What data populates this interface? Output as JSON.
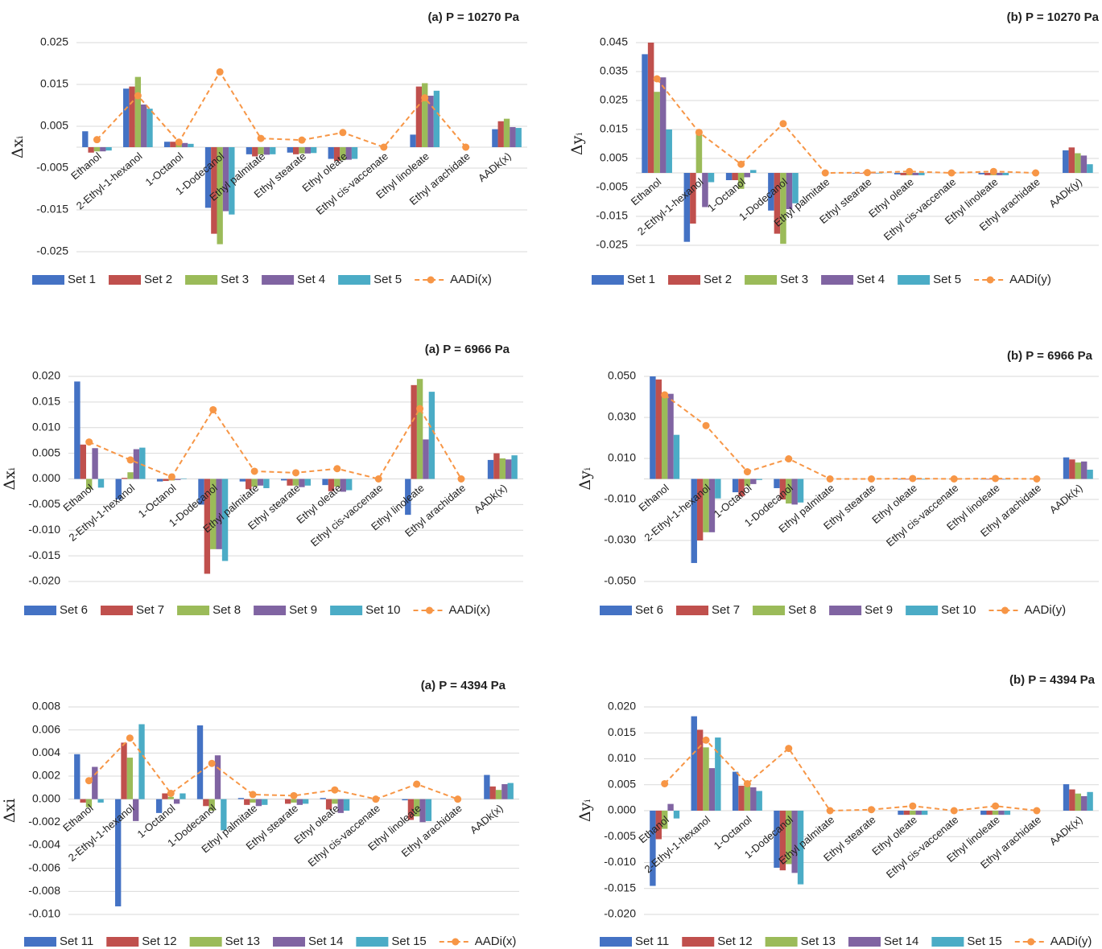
{
  "chart_data": [
    {
      "type": "bar",
      "title": "(a) P = 10270 Pa",
      "ylabel": "Δxᵢ",
      "legend": "bottom",
      "grid": true,
      "categories": [
        "Ethanol",
        "2-Ethyl-1-hexanol",
        "1-Octanol",
        "1-Dodecanol",
        "Ethyl palmitate",
        "Ethyl stearate",
        "Ethyl oleate",
        "Ethyl cis-vaccenate",
        "Ethyl linoleate",
        "Ethyl arachidate",
        "AADk(x)"
      ],
      "ylim": [
        -0.025,
        0.025
      ],
      "yticks": [
        -0.025,
        -0.015,
        -0.005,
        0.005,
        0.015,
        0.025
      ],
      "series": [
        {
          "name": "Set 1",
          "color": "#4472c4",
          "values": [
            0.0038,
            0.014,
            0.0013,
            -0.0145,
            -0.0017,
            -0.0013,
            -0.0028,
            0,
            0.003,
            0,
            0.0043
          ]
        },
        {
          "name": "Set 2",
          "color": "#c0504d",
          "values": [
            -0.0013,
            0.0145,
            0.0013,
            -0.0207,
            -0.0022,
            -0.0017,
            -0.0033,
            0,
            0.0145,
            0,
            0.0062
          ]
        },
        {
          "name": "Set 3",
          "color": "#9bbb59",
          "values": [
            -0.001,
            0.0168,
            0.0015,
            -0.0232,
            -0.0017,
            -0.0015,
            -0.0031,
            0,
            0.0153,
            0,
            0.0068
          ]
        },
        {
          "name": "Set 4",
          "color": "#8064a2",
          "values": [
            -0.001,
            0.0102,
            0.001,
            -0.0153,
            -0.0018,
            -0.0015,
            -0.003,
            0,
            0.0123,
            0,
            0.0048
          ]
        },
        {
          "name": "Set 5",
          "color": "#4bacc6",
          "values": [
            -0.0008,
            0.0092,
            0.0008,
            -0.0161,
            -0.0017,
            -0.0014,
            -0.0028,
            0,
            0.0135,
            0,
            0.0046
          ]
        },
        {
          "name": "AADi(x)",
          "color": "#f79646",
          "type": "line",
          "dashed": true,
          "values": [
            0.0018,
            0.0123,
            0.0012,
            0.018,
            0.0021,
            0.0017,
            0.0035,
            0,
            0.0118,
            0,
            null
          ]
        }
      ]
    },
    {
      "type": "bar",
      "title": "(b) P = 10270 Pa",
      "ylabel": "Δyᵢ",
      "legend": "bottom",
      "grid": true,
      "categories": [
        "Ethanol",
        "2-Ethyl-1-hexanol",
        "1-Octanol",
        "1-Dodecanol",
        "Ethyl palmitate",
        "Ethyl stearate",
        "Ethyl oleate",
        "Ethyl cis-vaccenate",
        "Ethyl linoleate",
        "Ethyl arachidate",
        "AADk(y)"
      ],
      "ylim": [
        -0.025,
        0.045
      ],
      "yticks": [
        -0.025,
        -0.015,
        -0.005,
        0.005,
        0.015,
        0.025,
        0.035,
        0.045
      ],
      "series": [
        {
          "name": "Set 1",
          "color": "#4472c4",
          "values": [
            0.041,
            -0.0238,
            -0.0025,
            -0.013,
            0,
            -0.0002,
            -0.0005,
            0,
            -0.0005,
            0,
            0.0078
          ]
        },
        {
          "name": "Set 2",
          "color": "#c0504d",
          "values": [
            0.045,
            -0.0175,
            -0.0025,
            -0.021,
            0,
            -0.0002,
            -0.0008,
            0,
            -0.0008,
            0,
            0.0088
          ]
        },
        {
          "name": "Set 3",
          "color": "#9bbb59",
          "values": [
            0.028,
            0.014,
            -0.0055,
            -0.0245,
            0,
            -0.0002,
            -0.0008,
            0,
            -0.0008,
            0,
            0.0068
          ]
        },
        {
          "name": "Set 4",
          "color": "#8064a2",
          "values": [
            0.033,
            -0.0118,
            -0.0015,
            -0.0125,
            0,
            -0.0002,
            -0.0008,
            0,
            -0.0008,
            0,
            0.006
          ]
        },
        {
          "name": "Set 5",
          "color": "#4bacc6",
          "values": [
            0.015,
            -0.0032,
            0.001,
            -0.0105,
            0,
            -0.0002,
            -0.0008,
            0,
            -0.0008,
            0,
            0.003
          ]
        },
        {
          "name": "AADi(y)",
          "color": "#f79646",
          "type": "line",
          "dashed": true,
          "values": [
            0.0325,
            0.014,
            0.003,
            0.017,
            0,
            0.0001,
            0.0005,
            0,
            0.0005,
            0,
            null
          ]
        }
      ]
    },
    {
      "type": "bar",
      "title": "(a) P = 6966 Pa",
      "ylabel": "Δxᵢ",
      "legend": "bottom",
      "grid": true,
      "categories": [
        "Ethanol",
        "2-Ethyl-1-hexanol",
        "1-Octanol",
        "1-Dodecanol",
        "Ethyl palmitate",
        "Ethyl stearate",
        "Ethyl oleate",
        "Ethyl cis-vaccenate",
        "Ethyl linoleate",
        "Ethyl arachidate",
        "AADk(x)"
      ],
      "ylim": [
        -0.02,
        0.02
      ],
      "yticks": [
        {
          "value": -0.02,
          "label": "-0.020"
        },
        -0.015,
        {
          "value": -0.01,
          "label": "-0.010"
        },
        -0.005,
        {
          "value": 0,
          "label": "0.000"
        },
        0.005,
        {
          "value": 0.01,
          "label": "0.010"
        },
        0.015,
        {
          "value": 0.02,
          "label": "0.020"
        }
      ],
      "series": [
        {
          "name": "Set 6",
          "color": "#4472c4",
          "values": [
            0.019,
            -0.004,
            -0.0005,
            -0.005,
            -0.0005,
            -0.0003,
            -0.0012,
            0,
            -0.007,
            0,
            0.0037
          ]
        },
        {
          "name": "Set 7",
          "color": "#c0504d",
          "values": [
            0.0067,
            0.0002,
            -0.0004,
            -0.0185,
            -0.002,
            -0.0013,
            -0.0024,
            0,
            0.0183,
            0,
            0.005
          ]
        },
        {
          "name": "Set 8",
          "color": "#9bbb59",
          "values": [
            -0.002,
            0.0013,
            -0.0003,
            -0.0137,
            -0.0015,
            -0.0013,
            -0.0015,
            0,
            0.0195,
            0,
            0.004
          ]
        },
        {
          "name": "Set 9",
          "color": "#8064a2",
          "values": [
            0.006,
            0.0058,
            -0.0002,
            -0.0137,
            -0.0013,
            -0.0016,
            -0.0025,
            0,
            0.0077,
            0,
            0.0038
          ]
        },
        {
          "name": "Set 10",
          "color": "#4bacc6",
          "values": [
            -0.0017,
            0.0061,
            0.0001,
            -0.016,
            -0.0018,
            -0.0013,
            -0.0022,
            0,
            0.017,
            0,
            0.0046
          ]
        },
        {
          "name": "AADi(x)",
          "color": "#f79646",
          "type": "line",
          "dashed": true,
          "values": [
            0.0072,
            0.0037,
            0.0004,
            0.0135,
            0.0015,
            0.0012,
            0.002,
            0,
            0.0137,
            0,
            null
          ]
        }
      ]
    },
    {
      "type": "bar",
      "title": "(b) P = 6966 Pa",
      "ylabel": "Δyᵢ",
      "legend": "bottom",
      "grid": true,
      "categories": [
        "Ethanol",
        "2-Ethyl-1-hexanol",
        "1-Octanol",
        "1-Dodecanol",
        "Ethyl palmitate",
        "Ethyl stearate",
        "Ethyl oleate",
        "Ethyl cis-vaccenate",
        "Ethyl linoleate",
        "Ethyl arachidate",
        "AADk(x)"
      ],
      "ylim": [
        -0.05,
        0.05
      ],
      "yticks": [
        {
          "value": -0.05,
          "label": "-0.050"
        },
        {
          "value": -0.03,
          "label": "-0.030"
        },
        {
          "value": -0.01,
          "label": "-0.010"
        },
        {
          "value": 0.01,
          "label": "0.010"
        },
        {
          "value": 0.03,
          "label": "0.030"
        },
        {
          "value": 0.05,
          "label": "0.050"
        }
      ],
      "series": [
        {
          "name": "Set 6",
          "color": "#4472c4",
          "values": [
            0.05,
            -0.041,
            -0.0065,
            -0.0045,
            0,
            0,
            -0.0003,
            0,
            -0.0003,
            0,
            0.0105
          ]
        },
        {
          "name": "Set 7",
          "color": "#c0504d",
          "values": [
            0.0485,
            -0.03,
            -0.0085,
            -0.01,
            0,
            0,
            -0.0003,
            0,
            -0.0003,
            0,
            0.0095
          ]
        },
        {
          "name": "Set 8",
          "color": "#9bbb59",
          "values": [
            0.041,
            -0.026,
            -0.0035,
            -0.012,
            0,
            0,
            -0.0003,
            0,
            -0.0003,
            0,
            0.008
          ]
        },
        {
          "name": "Set 9",
          "color": "#8064a2",
          "values": [
            0.0415,
            -0.026,
            -0.0025,
            -0.0125,
            0,
            0,
            -0.0003,
            0,
            -0.0003,
            0,
            0.0085
          ]
        },
        {
          "name": "Set 10",
          "color": "#4bacc6",
          "values": [
            0.0215,
            -0.0095,
            -0.0005,
            -0.0115,
            0,
            0,
            -0.0003,
            0,
            -0.0003,
            0,
            0.0045
          ]
        },
        {
          "name": "AADi(y)",
          "color": "#f79646",
          "type": "line",
          "dashed": true,
          "values": [
            0.041,
            0.026,
            0.0035,
            0.0098,
            0,
            0,
            0.0002,
            0,
            0.0002,
            0,
            null
          ]
        }
      ]
    },
    {
      "type": "bar",
      "title": "(a) P = 4394 Pa",
      "ylabel": "Δxi",
      "legend": "bottom",
      "grid": true,
      "categories": [
        "Ethanol",
        "2-Ethyl-1-hexanol",
        "1-Octanol",
        "1-Dodecanol",
        "Ethyl palmitate",
        "Ethyl stearate",
        "Ethyl oleate",
        "Ethyl cis-vaccenate",
        "Ethyl linoleate",
        "Ethyl arachidate",
        "AADk(x)"
      ],
      "ylim": [
        -0.01,
        0.008
      ],
      "yticks": [
        {
          "value": -0.01,
          "label": "-0.010"
        },
        -0.008,
        -0.006,
        -0.004,
        -0.002,
        {
          "value": 0,
          "label": "0.000"
        },
        0.002,
        0.004,
        0.006,
        0.008
      ],
      "series": [
        {
          "name": "Set 11",
          "color": "#4472c4",
          "values": [
            0.0039,
            -0.0093,
            -0.0012,
            0.0064,
            0.0001,
            0,
            0.0001,
            0,
            -0.0001,
            0,
            0.0021
          ]
        },
        {
          "name": "Set 12",
          "color": "#c0504d",
          "values": [
            -0.0003,
            0.0049,
            0.0005,
            -0.0006,
            -0.0005,
            -0.0004,
            -0.0009,
            0,
            -0.0018,
            0,
            0.0011
          ]
        },
        {
          "name": "Set 13",
          "color": "#9bbb59",
          "values": [
            -0.0007,
            0.0036,
            0.0002,
            -0.001,
            -0.0003,
            -0.0003,
            -0.0004,
            0,
            -0.0015,
            0,
            0.0008
          ]
        },
        {
          "name": "Set 14",
          "color": "#8064a2",
          "values": [
            0.0028,
            -0.0019,
            -0.0004,
            0.0038,
            -0.0006,
            -0.0005,
            -0.0012,
            0,
            -0.002,
            0,
            0.0013
          ]
        },
        {
          "name": "Set 15",
          "color": "#4bacc6",
          "values": [
            -0.0003,
            0.0065,
            0.0005,
            -0.0027,
            -0.0005,
            -0.0004,
            -0.001,
            0,
            -0.0019,
            0,
            0.0014
          ]
        },
        {
          "name": "AADi(x)",
          "color": "#f79646",
          "type": "line",
          "dashed": true,
          "values": [
            0.0016,
            0.0053,
            0.0005,
            0.0031,
            0.0004,
            0.0003,
            0.0008,
            0,
            0.0013,
            0,
            null
          ]
        }
      ]
    },
    {
      "type": "bar",
      "title": "(b) P = 4394 Pa",
      "ylabel": "Δyᵢ",
      "legend": "bottom",
      "grid": true,
      "categories": [
        "Ethanol",
        "2-Ethyl-1-hexanol",
        "1-Octanol",
        "1-Dodecanol",
        "Ethyl palmitate",
        "Ethyl stearate",
        "Ethyl oleate",
        "Ethyl cis-vaccenate",
        "Ethyl linoleate",
        "Ethyl arachidate",
        "AADk(x)"
      ],
      "ylim": [
        -0.02,
        0.02
      ],
      "yticks": [
        {
          "value": -0.02,
          "label": "-0.020"
        },
        -0.015,
        {
          "value": -0.01,
          "label": "-0.010"
        },
        -0.005,
        {
          "value": 0,
          "label": "0.000"
        },
        0.005,
        {
          "value": 0.01,
          "label": "0.010"
        },
        0.015,
        {
          "value": 0.02,
          "label": "0.020"
        }
      ],
      "series": [
        {
          "name": "Set 11",
          "color": "#4472c4",
          "values": [
            -0.0145,
            0.0182,
            0.0075,
            -0.011,
            0,
            0,
            -0.0008,
            0,
            -0.0008,
            0,
            0.0051
          ]
        },
        {
          "name": "Set 12",
          "color": "#c0504d",
          "values": [
            -0.0055,
            0.0156,
            0.0048,
            -0.0115,
            0,
            0,
            -0.0008,
            0,
            -0.0008,
            0,
            0.0041
          ]
        },
        {
          "name": "Set 13",
          "color": "#9bbb59",
          "values": [
            -0.0035,
            0.0122,
            0.0055,
            -0.0103,
            0,
            0,
            -0.0008,
            0,
            -0.0008,
            0,
            0.0033
          ]
        },
        {
          "name": "Set 14",
          "color": "#8064a2",
          "values": [
            0.0013,
            0.0082,
            0.0045,
            -0.012,
            0,
            0,
            -0.0008,
            0,
            -0.0008,
            0,
            0.0028
          ]
        },
        {
          "name": "Set 15",
          "color": "#4bacc6",
          "values": [
            -0.0015,
            0.0141,
            0.0038,
            -0.0142,
            0,
            0,
            -0.0008,
            0,
            -0.0008,
            0,
            0.0036
          ]
        },
        {
          "name": "AADi(y)",
          "color": "#f79646",
          "type": "line",
          "dashed": true,
          "values": [
            0.0052,
            0.0136,
            0.0052,
            0.012,
            0,
            0.0002,
            0.0009,
            0,
            0.0009,
            0,
            null
          ]
        }
      ]
    }
  ]
}
